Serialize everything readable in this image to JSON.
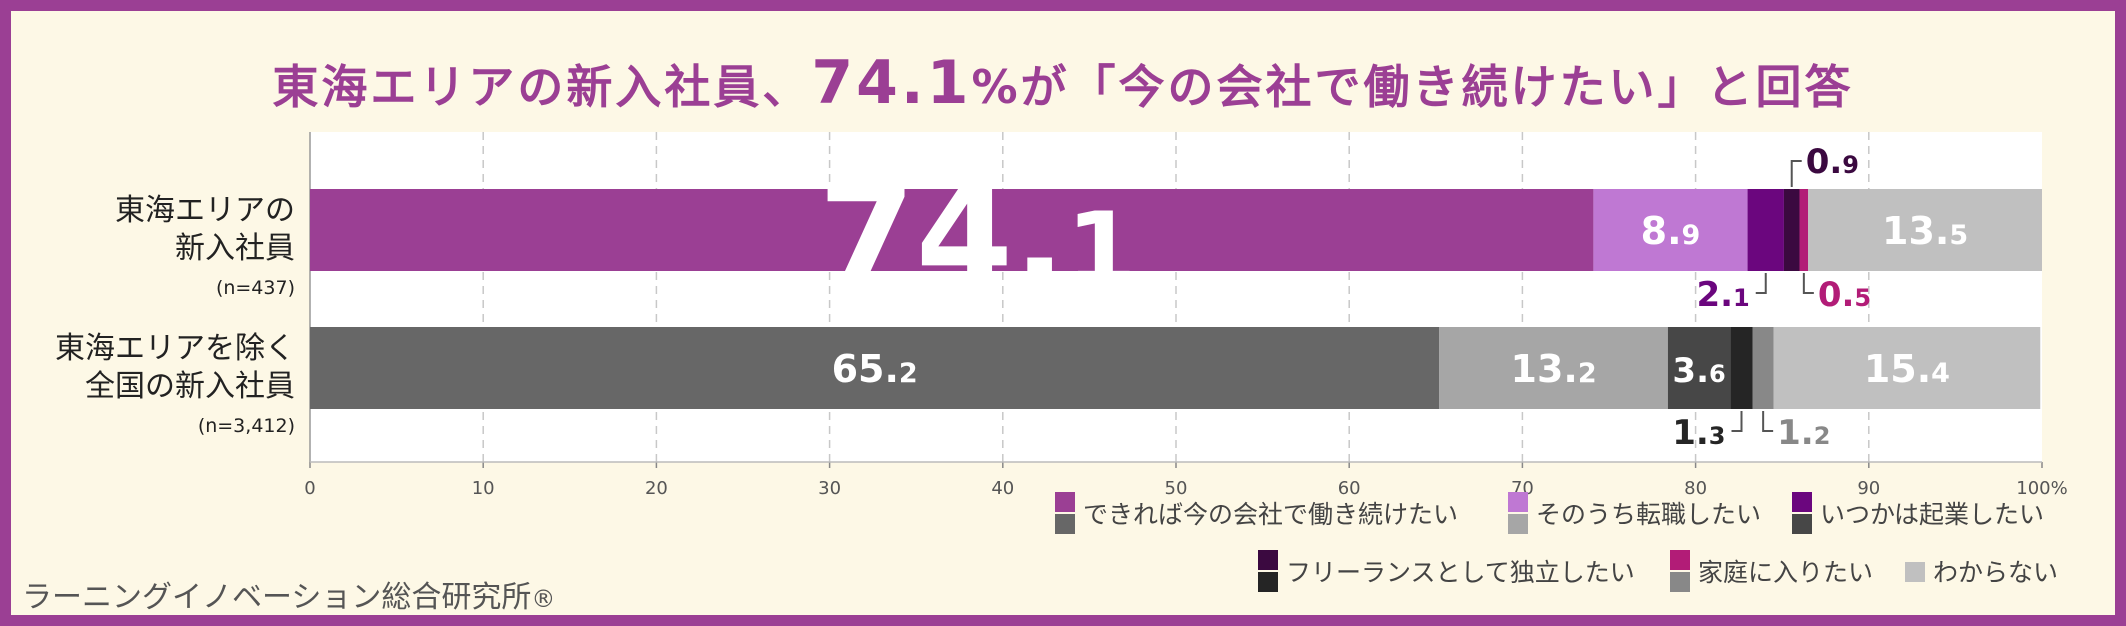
{
  "title": {
    "part1": "東海エリアの新入社員、",
    "big": "74.1",
    "part2": "%が「今の会社で働き続けたい」と回答"
  },
  "credit": {
    "text": "ラーニングイノベーション総合研究所",
    "mark": "®"
  },
  "chart_data": {
    "type": "bar",
    "orientation": "horizontal",
    "stacked": true,
    "xlim": [
      0,
      100
    ],
    "x_ticks": [
      "0",
      "10",
      "20",
      "30",
      "40",
      "50",
      "60",
      "70",
      "80",
      "90",
      "100%"
    ],
    "grid": "vertical dashed",
    "categories": [
      {
        "label_lines": [
          "東海エリアの",
          "新入社員"
        ],
        "n": "(n=437)"
      },
      {
        "label_lines": [
          "東海エリアを除く",
          "全国の新入社員"
        ],
        "n": "(n=3,412)"
      }
    ],
    "series": [
      {
        "name": "できれば今の会社で働き続けたい",
        "values": [
          74.1,
          65.2
        ],
        "colors": [
          "#9b3f94",
          "#676767"
        ],
        "text_colors": [
          "#ffffff",
          "#ffffff"
        ]
      },
      {
        "name": "そのうち転職したい",
        "values": [
          8.9,
          13.2
        ],
        "colors": [
          "#bf78d3",
          "#a6a6a6"
        ],
        "text_colors": [
          "#ffffff",
          "#ffffff"
        ]
      },
      {
        "name": "いつかは起業したい",
        "values": [
          2.1,
          3.6
        ],
        "colors": [
          "#6b067e",
          "#474747"
        ],
        "text_colors": [
          "#6b067e",
          "#ffffff"
        ]
      },
      {
        "name": "フリーランスとして独立したい",
        "values": [
          0.9,
          1.3
        ],
        "colors": [
          "#3b0940",
          "#252525"
        ],
        "text_colors": [
          "#3b0940",
          "#252525"
        ]
      },
      {
        "name": "家庭に入りたい",
        "values": [
          0.5,
          1.2
        ],
        "colors": [
          "#b21c77",
          "#888888"
        ],
        "text_colors": [
          "#b21c77",
          "#888888"
        ]
      },
      {
        "name": "わからない",
        "values": [
          13.5,
          15.4
        ],
        "colors": [
          "#c0c0c0",
          "#c0c0c0"
        ],
        "text_colors": [
          "#ffffff",
          "#ffffff"
        ]
      }
    ],
    "legend": {
      "placement": "bottom-right"
    }
  }
}
